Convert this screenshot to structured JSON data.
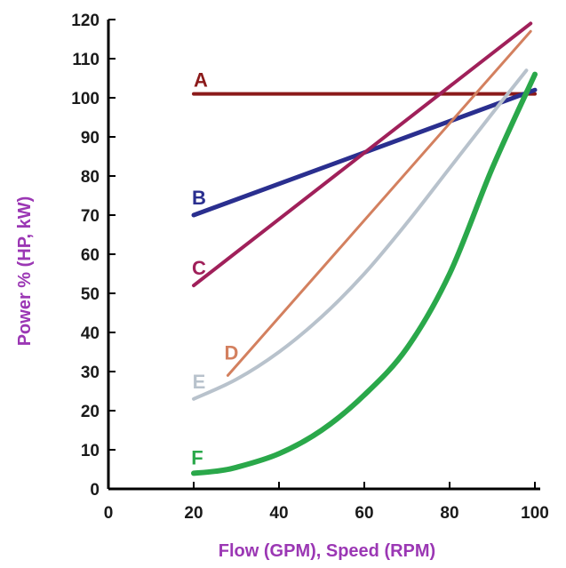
{
  "chart_data": {
    "type": "line",
    "xlabel": "Flow (GPM), Speed (RPM)",
    "ylabel": "Power % (HP, kW)",
    "xlim": [
      0,
      100
    ],
    "ylim": [
      0,
      120
    ],
    "xticks": [
      "0",
      "20",
      "40",
      "60",
      "80",
      "100"
    ],
    "yticks": [
      "0",
      "10",
      "20",
      "30",
      "40",
      "50",
      "60",
      "70",
      "80",
      "90",
      "100",
      "110",
      "120"
    ],
    "grid": false,
    "series": [
      {
        "name": "A",
        "color": "#8b1a1a",
        "points": [
          [
            20,
            101
          ],
          [
            100,
            101
          ]
        ]
      },
      {
        "name": "B",
        "color": "#2a2f8f",
        "points": [
          [
            20,
            70
          ],
          [
            100,
            102
          ]
        ]
      },
      {
        "name": "C",
        "color": "#a0205a",
        "points": [
          [
            20,
            52
          ],
          [
            99,
            119
          ]
        ]
      },
      {
        "name": "D",
        "color": "#d3805f",
        "points": [
          [
            28,
            29
          ],
          [
            99,
            117
          ]
        ]
      },
      {
        "name": "E",
        "color": "#b8c2cc",
        "points": [
          [
            20,
            23
          ],
          [
            30,
            28
          ],
          [
            40,
            35
          ],
          [
            50,
            44
          ],
          [
            60,
            55
          ],
          [
            70,
            68
          ],
          [
            80,
            82
          ],
          [
            90,
            96
          ],
          [
            98,
            107
          ]
        ]
      },
      {
        "name": "F",
        "color": "#2aa84a",
        "points": [
          [
            20,
            4
          ],
          [
            25,
            4.5
          ],
          [
            30,
            5.5
          ],
          [
            40,
            9
          ],
          [
            50,
            15
          ],
          [
            60,
            24
          ],
          [
            70,
            36
          ],
          [
            80,
            55
          ],
          [
            90,
            82
          ],
          [
            100,
            106
          ]
        ]
      }
    ]
  }
}
